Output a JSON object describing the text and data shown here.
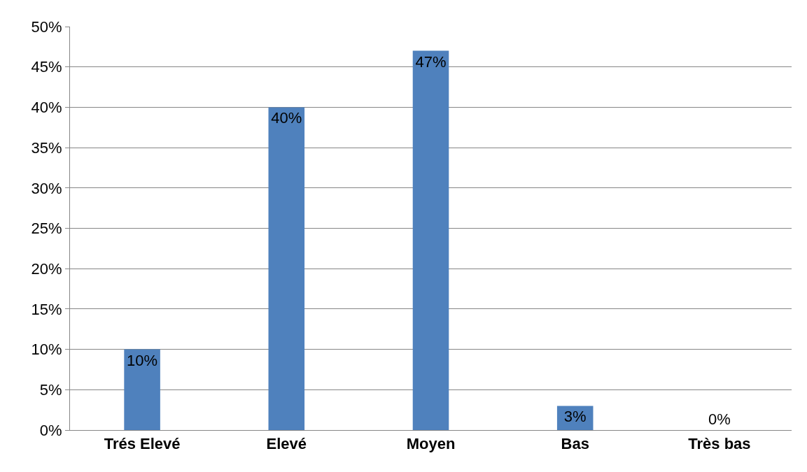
{
  "chart_data": {
    "type": "bar",
    "categories": [
      "Trés Elevé",
      "Elevé",
      "Moyen",
      "Bas",
      "Très bas"
    ],
    "values": [
      10,
      40,
      47,
      3,
      0
    ],
    "value_labels": [
      "10%",
      "40%",
      "47%",
      "3%",
      "0%"
    ],
    "color": "#4f81bd",
    "ylim": [
      0,
      50
    ],
    "yticks": [
      {
        "value": 0,
        "label": "0%"
      },
      {
        "value": 5,
        "label": "5%"
      },
      {
        "value": 10,
        "label": "10%"
      },
      {
        "value": 15,
        "label": "15%"
      },
      {
        "value": 20,
        "label": "20%"
      },
      {
        "value": 25,
        "label": "25%"
      },
      {
        "value": 30,
        "label": "30%"
      },
      {
        "value": 35,
        "label": "35%"
      },
      {
        "value": 40,
        "label": "40%"
      },
      {
        "value": 45,
        "label": "45%"
      },
      {
        "value": 50,
        "label": "50%"
      }
    ],
    "grid": "y"
  }
}
